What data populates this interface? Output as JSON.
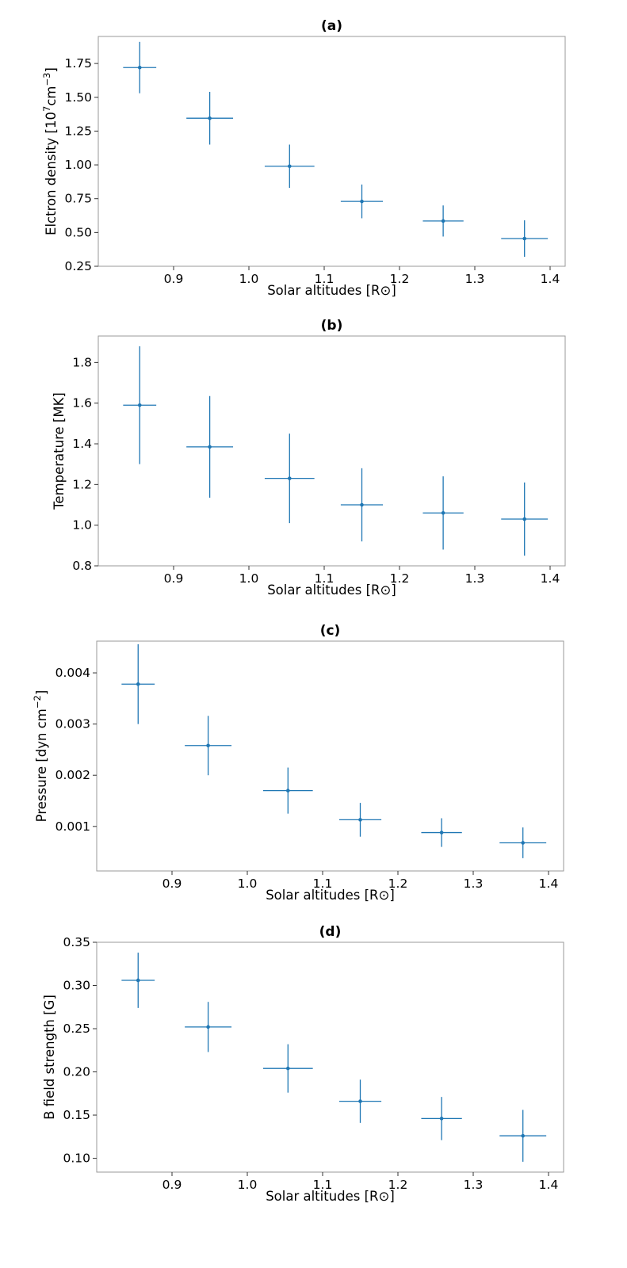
{
  "colors": {
    "series": "#1f77b4",
    "frame": "#999999",
    "background": "#ffffff"
  },
  "chart_data": [
    {
      "type": "scatter",
      "title": "(a)",
      "xlabel": "Solar altitudes [R⊙]",
      "ylabel": "Elctron density [10⁷cm⁻³]",
      "xlim": [
        0.8,
        1.42
      ],
      "ylim": [
        0.25,
        1.95
      ],
      "xticks": [
        0.9,
        1.0,
        1.1,
        1.2,
        1.3,
        1.4
      ],
      "xtick_labels": [
        "0.9",
        "1.0",
        "1.1",
        "1.2",
        "1.3",
        "1.4"
      ],
      "yticks": [
        0.25,
        0.5,
        0.75,
        1.0,
        1.25,
        1.5,
        1.75
      ],
      "ytick_labels": [
        "0.25",
        "0.50",
        "0.75",
        "1.00",
        "1.25",
        "1.50",
        "1.75"
      ],
      "grid": false,
      "x": [
        0.855,
        0.948,
        1.054,
        1.15,
        1.258,
        1.366
      ],
      "y": [
        1.72,
        1.345,
        0.99,
        0.73,
        0.585,
        0.455
      ],
      "xerr": [
        0.022,
        0.031,
        0.033,
        0.028,
        0.027,
        0.031
      ],
      "yerr": [
        0.19,
        0.195,
        0.16,
        0.125,
        0.115,
        0.135
      ]
    },
    {
      "type": "scatter",
      "title": "(b)",
      "xlabel": "Solar altitudes [R⊙]",
      "ylabel": "Temperature [MK]",
      "xlim": [
        0.8,
        1.42
      ],
      "ylim": [
        0.8,
        1.93
      ],
      "xticks": [
        0.9,
        1.0,
        1.1,
        1.2,
        1.3,
        1.4
      ],
      "xtick_labels": [
        "0.9",
        "1.0",
        "1.1",
        "1.2",
        "1.3",
        "1.4"
      ],
      "yticks": [
        0.8,
        1.0,
        1.2,
        1.4,
        1.6,
        1.8
      ],
      "ytick_labels": [
        "0.8",
        "1.0",
        "1.2",
        "1.4",
        "1.6",
        "1.8"
      ],
      "grid": false,
      "x": [
        0.855,
        0.948,
        1.054,
        1.15,
        1.258,
        1.366
      ],
      "y": [
        1.59,
        1.385,
        1.23,
        1.1,
        1.06,
        1.03
      ],
      "xerr": [
        0.022,
        0.031,
        0.033,
        0.028,
        0.027,
        0.031
      ],
      "yerr": [
        0.29,
        0.25,
        0.22,
        0.18,
        0.18,
        0.18
      ]
    },
    {
      "type": "scatter",
      "title": "(c)",
      "xlabel": "Solar altitudes [R⊙]",
      "ylabel": "Pressure [dyn cm⁻²]",
      "xlim": [
        0.8,
        1.42
      ],
      "ylim": [
        0.00013,
        0.00462
      ],
      "xticks": [
        0.9,
        1.0,
        1.1,
        1.2,
        1.3,
        1.4
      ],
      "xtick_labels": [
        "0.9",
        "1.0",
        "1.1",
        "1.2",
        "1.3",
        "1.4"
      ],
      "yticks": [
        0.001,
        0.002,
        0.003,
        0.004
      ],
      "ytick_labels": [
        "0.001",
        "0.002",
        "0.003",
        "0.004"
      ],
      "grid": false,
      "x": [
        0.855,
        0.948,
        1.054,
        1.15,
        1.258,
        1.366
      ],
      "y": [
        0.00378,
        0.00258,
        0.0017,
        0.00113,
        0.00088,
        0.00068
      ],
      "xerr": [
        0.022,
        0.031,
        0.033,
        0.028,
        0.027,
        0.031
      ],
      "yerr": [
        0.00078,
        0.00058,
        0.00045,
        0.00033,
        0.00028,
        0.0003
      ]
    },
    {
      "type": "scatter",
      "title": "(d)",
      "xlabel": "Solar altitudes [R⊙]",
      "ylabel": "B field strength [G]",
      "xlim": [
        0.8,
        1.42
      ],
      "ylim": [
        0.084,
        0.35
      ],
      "xticks": [
        0.9,
        1.0,
        1.1,
        1.2,
        1.3,
        1.4
      ],
      "xtick_labels": [
        "0.9",
        "1.0",
        "1.1",
        "1.2",
        "1.3",
        "1.4"
      ],
      "yticks": [
        0.1,
        0.15,
        0.2,
        0.25,
        0.3,
        0.35
      ],
      "ytick_labels": [
        "0.10",
        "0.15",
        "0.20",
        "0.25",
        "0.30",
        "0.35"
      ],
      "grid": false,
      "x": [
        0.855,
        0.948,
        1.054,
        1.15,
        1.258,
        1.366
      ],
      "y": [
        0.306,
        0.252,
        0.204,
        0.166,
        0.146,
        0.126
      ],
      "xerr": [
        0.022,
        0.031,
        0.033,
        0.028,
        0.027,
        0.031
      ],
      "yerr": [
        0.032,
        0.029,
        0.028,
        0.025,
        0.025,
        0.03
      ]
    }
  ]
}
